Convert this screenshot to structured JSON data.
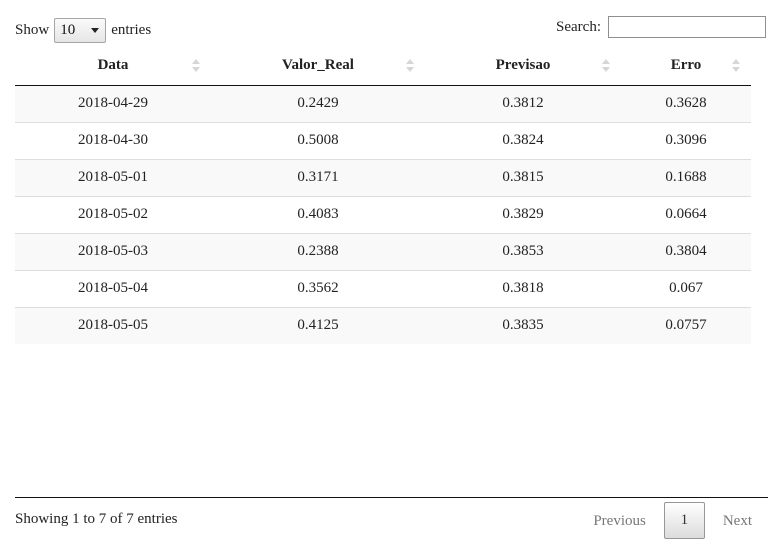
{
  "length_control": {
    "show_label": "Show",
    "selected": "10",
    "entries_label": "entries"
  },
  "search": {
    "label": "Search:",
    "value": ""
  },
  "table": {
    "columns": [
      "Data",
      "Valor_Real",
      "Previsao",
      "Erro"
    ],
    "rows": [
      [
        "2018-04-29",
        "0.2429",
        "0.3812",
        "0.3628"
      ],
      [
        "2018-04-30",
        "0.5008",
        "0.3824",
        "0.3096"
      ],
      [
        "2018-05-01",
        "0.3171",
        "0.3815",
        "0.1688"
      ],
      [
        "2018-05-02",
        "0.4083",
        "0.3829",
        "0.0664"
      ],
      [
        "2018-05-03",
        "0.2388",
        "0.3853",
        "0.3804"
      ],
      [
        "2018-05-04",
        "0.3562",
        "0.3818",
        "0.067"
      ],
      [
        "2018-05-05",
        "0.4125",
        "0.3835",
        "0.0757"
      ]
    ]
  },
  "footer": {
    "info": "Showing 1 to 7 of 7 entries",
    "previous": "Previous",
    "current_page": "1",
    "next": "Next"
  }
}
